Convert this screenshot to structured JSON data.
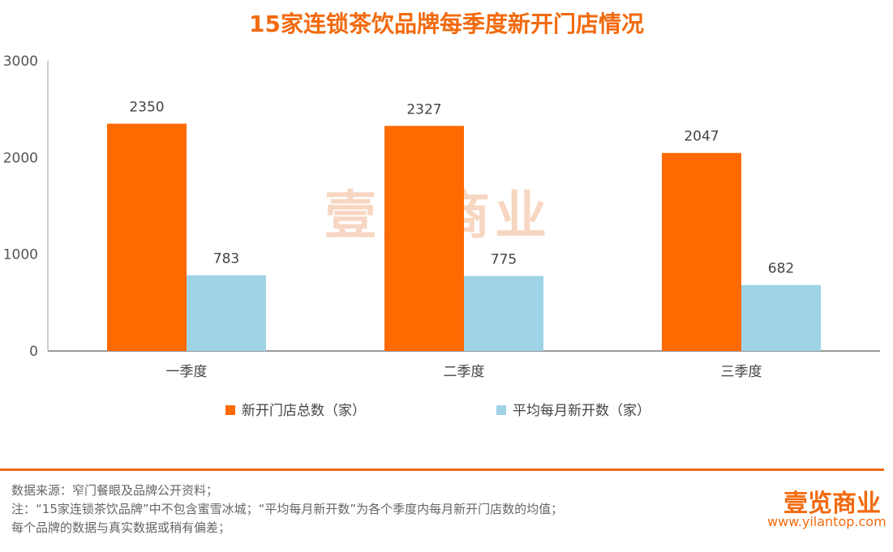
{
  "chart_data": {
    "type": "bar",
    "title": "15家连锁茶饮品牌每季度新开门店情况",
    "categories": [
      "一季度",
      "二季度",
      "三季度"
    ],
    "series": [
      {
        "name": "新开门店总数（家）",
        "values": [
          2350,
          2327,
          2047
        ],
        "color": "#ff6a00"
      },
      {
        "name": "平均每月新开数（家）",
        "values": [
          783,
          775,
          682
        ],
        "color": "#9fd3e6"
      }
    ],
    "ylim": [
      0,
      3000
    ],
    "yticks": [
      0,
      1000,
      2000,
      3000
    ],
    "grid": false,
    "legend": "bottom"
  },
  "footer": {
    "lines": [
      "数据来源：窄门餐眼及品牌公开资料；",
      "注：“15家连锁茶饮品牌”中不包含蜜雪冰城；“平均每月新开数”为各个季度内每月新开门店数的均值；",
      "每个品牌的数据与真实数据或稍有偏差；"
    ],
    "logo": "壹览商业",
    "url": "www.yilantop.com"
  },
  "watermark": "壹览商业"
}
